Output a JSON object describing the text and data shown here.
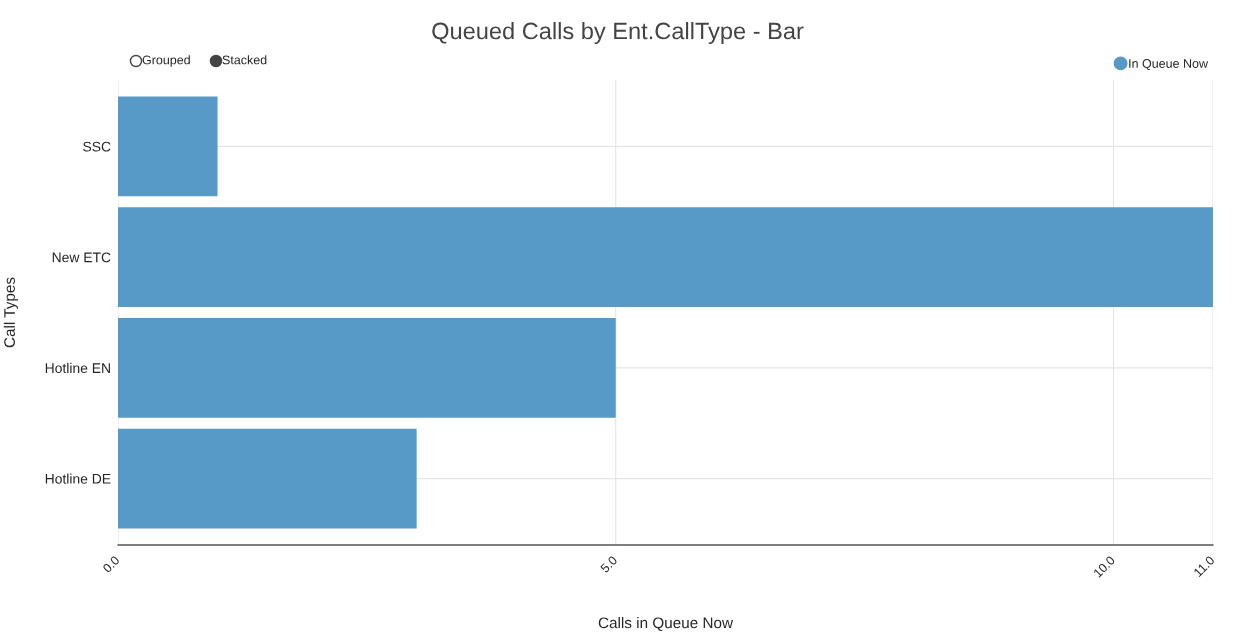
{
  "chart_data": {
    "type": "bar",
    "orientation": "horizontal",
    "title": "Queued Calls by Ent.CallType - Bar",
    "xlabel": "Calls in Queue Now",
    "ylabel": "Call Types",
    "categories": [
      "SSC",
      "New ETC",
      "Hotline EN",
      "Hotline DE"
    ],
    "series": [
      {
        "name": "In Queue Now",
        "color": "#5799c7",
        "values": [
          1,
          11,
          5,
          3
        ]
      }
    ],
    "xlim": [
      0,
      11
    ],
    "xticks": [
      {
        "value": 0,
        "label": "0.0"
      },
      {
        "value": 5,
        "label": "5.0"
      },
      {
        "value": 10,
        "label": "10.0"
      },
      {
        "value": 11,
        "label": "11.0"
      }
    ],
    "grid": true,
    "legend": "top right",
    "annotations": [
      "Grouped",
      "Stacked"
    ]
  }
}
